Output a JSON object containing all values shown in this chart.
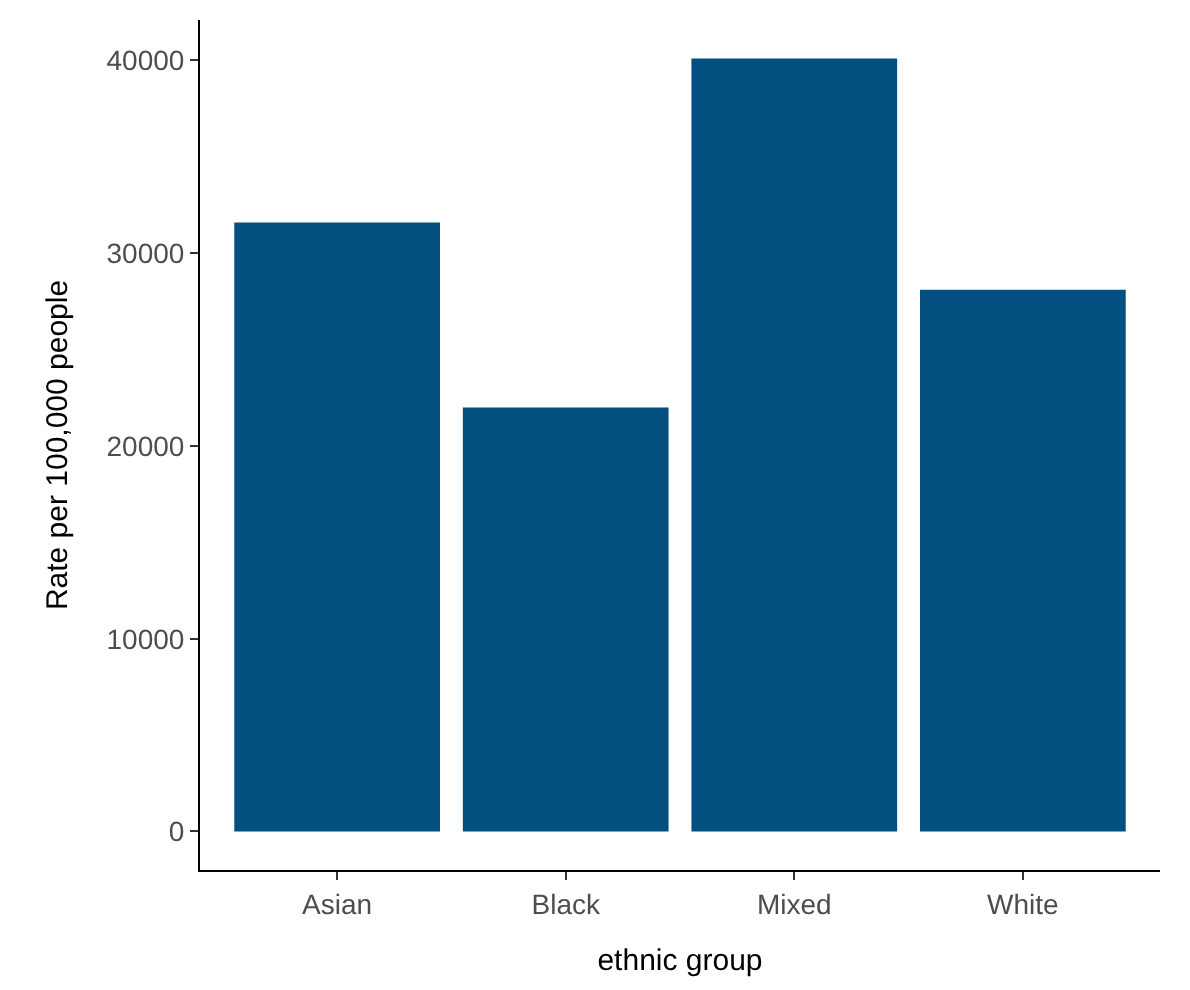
{
  "chart_data": {
    "type": "bar",
    "xlabel": "ethnic group",
    "ylabel": "Rate per 100,000 people",
    "categories": [
      "Asian",
      "Black",
      "Mixed",
      "White"
    ],
    "values": [
      31600,
      22000,
      40100,
      28100
    ],
    "color": "#034f80",
    "ylim": [
      -2000,
      42100
    ],
    "yticks": [
      0,
      10000,
      20000,
      30000,
      40000
    ]
  }
}
